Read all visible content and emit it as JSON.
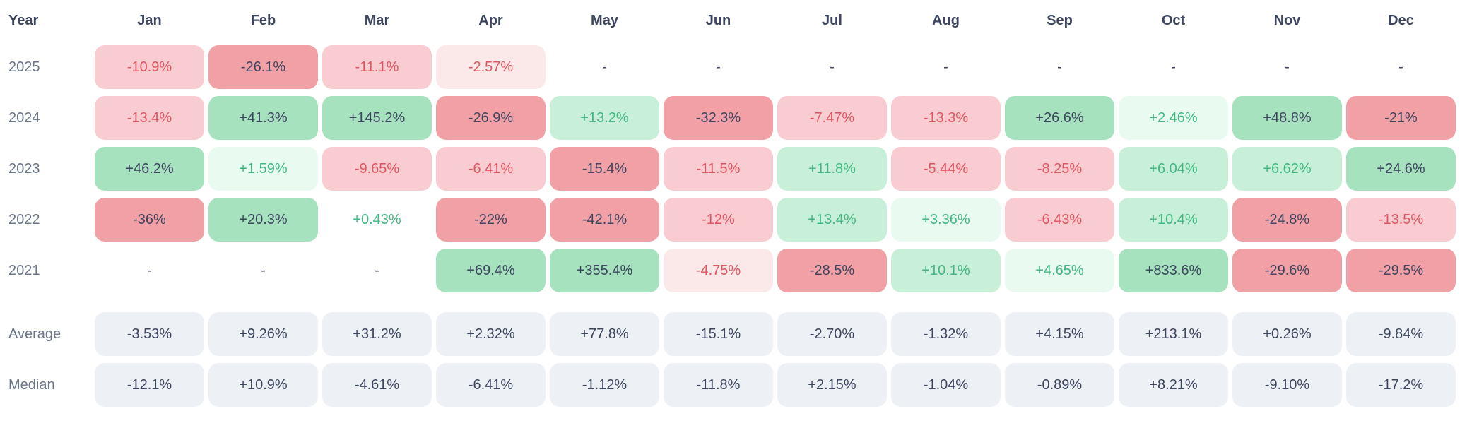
{
  "table": {
    "year_header": "Year",
    "months": [
      "Jan",
      "Feb",
      "Mar",
      "Apr",
      "May",
      "Jun",
      "Jul",
      "Aug",
      "Sep",
      "Oct",
      "Nov",
      "Dec"
    ],
    "rows": [
      {
        "label": "2025",
        "cells": [
          {
            "v": "-10.9%",
            "t": "r2"
          },
          {
            "v": "-26.1%",
            "t": "r3"
          },
          {
            "v": "-11.1%",
            "t": "r2"
          },
          {
            "v": "-2.57%",
            "t": "r1"
          },
          {
            "v": "-",
            "t": "dash"
          },
          {
            "v": "-",
            "t": "dash"
          },
          {
            "v": "-",
            "t": "dash"
          },
          {
            "v": "-",
            "t": "dash"
          },
          {
            "v": "-",
            "t": "dash"
          },
          {
            "v": "-",
            "t": "dash"
          },
          {
            "v": "-",
            "t": "dash"
          },
          {
            "v": "-",
            "t": "dash"
          }
        ]
      },
      {
        "label": "2024",
        "cells": [
          {
            "v": "-13.4%",
            "t": "r2"
          },
          {
            "v": "+41.3%",
            "t": "g3"
          },
          {
            "v": "+145.2%",
            "t": "g3"
          },
          {
            "v": "-26.9%",
            "t": "r3"
          },
          {
            "v": "+13.2%",
            "t": "g2"
          },
          {
            "v": "-32.3%",
            "t": "r3"
          },
          {
            "v": "-7.47%",
            "t": "r2"
          },
          {
            "v": "-13.3%",
            "t": "r2"
          },
          {
            "v": "+26.6%",
            "t": "g3"
          },
          {
            "v": "+2.46%",
            "t": "g1"
          },
          {
            "v": "+48.8%",
            "t": "g3"
          },
          {
            "v": "-21%",
            "t": "r3"
          }
        ]
      },
      {
        "label": "2023",
        "cells": [
          {
            "v": "+46.2%",
            "t": "g3"
          },
          {
            "v": "+1.59%",
            "t": "g1"
          },
          {
            "v": "-9.65%",
            "t": "r2"
          },
          {
            "v": "-6.41%",
            "t": "r2"
          },
          {
            "v": "-15.4%",
            "t": "r3"
          },
          {
            "v": "-11.5%",
            "t": "r2"
          },
          {
            "v": "+11.8%",
            "t": "g2"
          },
          {
            "v": "-5.44%",
            "t": "r2"
          },
          {
            "v": "-8.25%",
            "t": "r2"
          },
          {
            "v": "+6.04%",
            "t": "g2"
          },
          {
            "v": "+6.62%",
            "t": "g2"
          },
          {
            "v": "+24.6%",
            "t": "g3"
          }
        ]
      },
      {
        "label": "2022",
        "cells": [
          {
            "v": "-36%",
            "t": "r3"
          },
          {
            "v": "+20.3%",
            "t": "g3"
          },
          {
            "v": "+0.43%",
            "t": "g0"
          },
          {
            "v": "-22%",
            "t": "r3"
          },
          {
            "v": "-42.1%",
            "t": "r3"
          },
          {
            "v": "-12%",
            "t": "r2"
          },
          {
            "v": "+13.4%",
            "t": "g2"
          },
          {
            "v": "+3.36%",
            "t": "g1"
          },
          {
            "v": "-6.43%",
            "t": "r2"
          },
          {
            "v": "+10.4%",
            "t": "g2"
          },
          {
            "v": "-24.8%",
            "t": "r3"
          },
          {
            "v": "-13.5%",
            "t": "r2"
          }
        ]
      },
      {
        "label": "2021",
        "cells": [
          {
            "v": "-",
            "t": "dash"
          },
          {
            "v": "-",
            "t": "dash"
          },
          {
            "v": "-",
            "t": "dash"
          },
          {
            "v": "+69.4%",
            "t": "g3"
          },
          {
            "v": "+355.4%",
            "t": "g3"
          },
          {
            "v": "-4.75%",
            "t": "r1"
          },
          {
            "v": "-28.5%",
            "t": "r3"
          },
          {
            "v": "+10.1%",
            "t": "g2"
          },
          {
            "v": "+4.65%",
            "t": "g1"
          },
          {
            "v": "+833.6%",
            "t": "g3"
          },
          {
            "v": "-29.6%",
            "t": "r3"
          },
          {
            "v": "-29.5%",
            "t": "r3"
          }
        ]
      }
    ],
    "summary_rows": [
      {
        "label": "Average",
        "cells": [
          {
            "v": "-3.53%",
            "t": "sum"
          },
          {
            "v": "+9.26%",
            "t": "sum"
          },
          {
            "v": "+31.2%",
            "t": "sum"
          },
          {
            "v": "+2.32%",
            "t": "sum"
          },
          {
            "v": "+77.8%",
            "t": "sum"
          },
          {
            "v": "-15.1%",
            "t": "sum"
          },
          {
            "v": "-2.70%",
            "t": "sum"
          },
          {
            "v": "-1.32%",
            "t": "sum"
          },
          {
            "v": "+4.15%",
            "t": "sum"
          },
          {
            "v": "+213.1%",
            "t": "sum"
          },
          {
            "v": "+0.26%",
            "t": "sum"
          },
          {
            "v": "-9.84%",
            "t": "sum"
          }
        ]
      },
      {
        "label": "Median",
        "cells": [
          {
            "v": "-12.1%",
            "t": "sum"
          },
          {
            "v": "+10.9%",
            "t": "sum"
          },
          {
            "v": "-4.61%",
            "t": "sum"
          },
          {
            "v": "-6.41%",
            "t": "sum"
          },
          {
            "v": "-1.12%",
            "t": "sum"
          },
          {
            "v": "-11.8%",
            "t": "sum"
          },
          {
            "v": "+2.15%",
            "t": "sum"
          },
          {
            "v": "-1.04%",
            "t": "sum"
          },
          {
            "v": "-0.89%",
            "t": "sum"
          },
          {
            "v": "+8.21%",
            "t": "sum"
          },
          {
            "v": "-9.10%",
            "t": "sum"
          },
          {
            "v": "-17.2%",
            "t": "sum"
          }
        ]
      }
    ]
  },
  "chart_data": {
    "type": "heatmap",
    "title": "",
    "columns": [
      "Jan",
      "Feb",
      "Mar",
      "Apr",
      "May",
      "Jun",
      "Jul",
      "Aug",
      "Sep",
      "Oct",
      "Nov",
      "Dec"
    ],
    "row_header": "Year",
    "rows": [
      {
        "label": "2025",
        "values": [
          -10.9,
          -26.1,
          -11.1,
          -2.57,
          null,
          null,
          null,
          null,
          null,
          null,
          null,
          null
        ]
      },
      {
        "label": "2024",
        "values": [
          -13.4,
          41.3,
          145.2,
          -26.9,
          13.2,
          -32.3,
          -7.47,
          -13.3,
          26.6,
          2.46,
          48.8,
          -21
        ]
      },
      {
        "label": "2023",
        "values": [
          46.2,
          1.59,
          -9.65,
          -6.41,
          -15.4,
          -11.5,
          11.8,
          -5.44,
          -8.25,
          6.04,
          6.62,
          24.6
        ]
      },
      {
        "label": "2022",
        "values": [
          -36,
          20.3,
          0.43,
          -22,
          -42.1,
          -12,
          13.4,
          3.36,
          -6.43,
          10.4,
          -24.8,
          -13.5
        ]
      },
      {
        "label": "2021",
        "values": [
          null,
          null,
          null,
          69.4,
          355.4,
          -4.75,
          -28.5,
          10.1,
          4.65,
          833.6,
          -29.6,
          -29.5
        ]
      }
    ],
    "summary": [
      {
        "label": "Average",
        "values": [
          -3.53,
          9.26,
          31.2,
          2.32,
          77.8,
          -15.1,
          -2.7,
          -1.32,
          4.15,
          213.1,
          0.26,
          -9.84
        ]
      },
      {
        "label": "Median",
        "values": [
          -12.1,
          10.9,
          -4.61,
          -6.41,
          -1.12,
          -11.8,
          2.15,
          -1.04,
          -0.89,
          8.21,
          -9.1,
          -17.2
        ]
      }
    ],
    "legend_position": "none",
    "grid": false,
    "value_unit": "%"
  },
  "colors": {
    "text_dark": "#3d4660",
    "text_gray": "#6b7689",
    "red_text": "#e05560",
    "green_text": "#41b881",
    "red_bg_light": "#fbe9ea",
    "red_bg_mid": "#f8ccd1",
    "red_bg_strong": "#f1a0a6",
    "green_bg_light": "#e9faf0",
    "green_bg_mid": "#c8efd8",
    "green_bg_strong": "#a6e2be",
    "summary_bg": "#edf1f6"
  }
}
